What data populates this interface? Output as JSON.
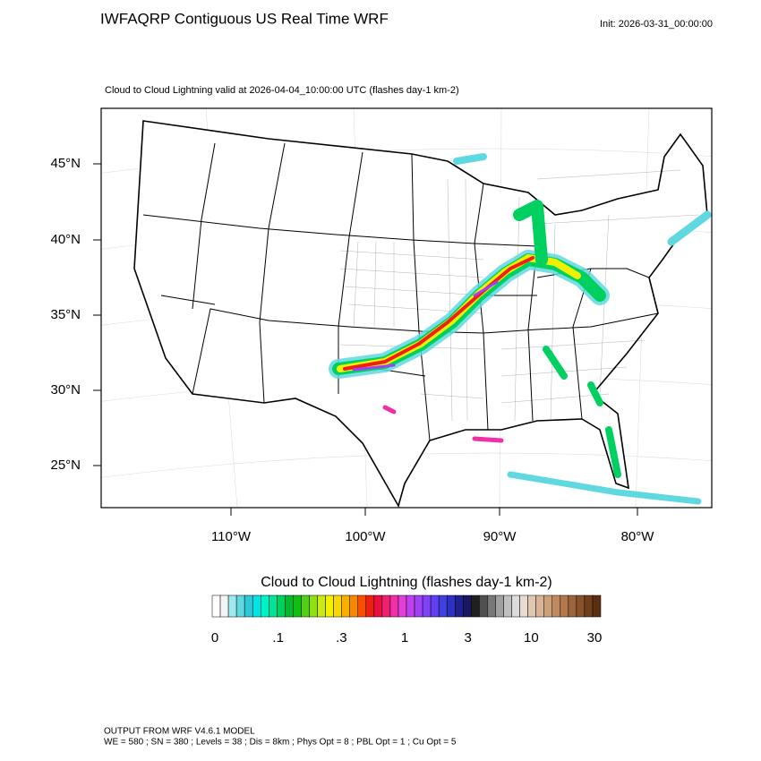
{
  "header": {
    "title": "IWFAQRP Contiguous US Real Time WRF",
    "init": "Init: 2026-03-31_00:00:00",
    "subtitle": "Cloud to Cloud Lightning valid at 2026-04-04_10:00:00 UTC   (flashes day-1 km-2)"
  },
  "map": {
    "lat_labels": [
      "45°N",
      "40°N",
      "35°N",
      "30°N",
      "25°N"
    ],
    "lon_labels": [
      "110°W",
      "100°W",
      "90°W",
      "80°W"
    ]
  },
  "colorbar": {
    "title": "Cloud to Cloud Lightning  (flashes day-1 km-2)",
    "labels": [
      "0",
      ".1",
      ".3",
      "1",
      "3",
      "10",
      "30"
    ],
    "colors": [
      "#ffffff",
      "#f4f4f4",
      "#9ee8ee",
      "#5fd8e0",
      "#2ec8d8",
      "#00e4e4",
      "#00f0c8",
      "#00e49a",
      "#00d060",
      "#00bc2c",
      "#10c010",
      "#50d010",
      "#90e010",
      "#c8ec10",
      "#f0f000",
      "#f8d800",
      "#f8b000",
      "#f88800",
      "#f85000",
      "#f02010",
      "#e81040",
      "#f02070",
      "#f030a8",
      "#e040d8",
      "#c040f0",
      "#a040f8",
      "#8040f8",
      "#6040f0",
      "#4040e0",
      "#3030c0",
      "#202090",
      "#181860",
      "#202020",
      "#505050",
      "#787878",
      "#a0a0a0",
      "#c0c0c0",
      "#dcdcdc",
      "#e8dcd0",
      "#e0c8b0",
      "#d8b494",
      "#cca07a",
      "#c08a60",
      "#b0784c",
      "#9c643a",
      "#88522a",
      "#70401c",
      "#5a3010"
    ]
  },
  "footer": {
    "line1": "OUTPUT FROM WRF V4.6.1 MODEL",
    "line2": "WE = 580 ; SN = 380 ; Levels = 38 ; Dis = 8km ; Phys Opt = 8 ; PBL Opt = 1 ; Cu Opt = 5"
  }
}
